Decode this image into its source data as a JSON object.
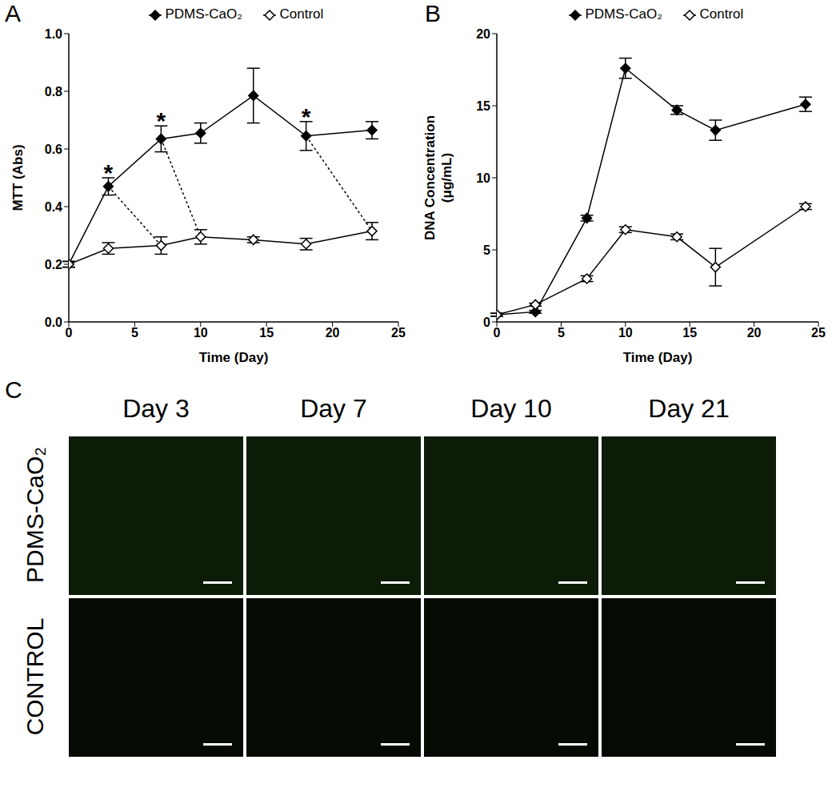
{
  "chart_data": [
    {
      "panel": "A",
      "type": "line",
      "xlabel": "Time (Day)",
      "ylabel": "MTT (Abs)",
      "xlim": [
        0,
        25
      ],
      "xticks": [
        0,
        5,
        10,
        15,
        20,
        25
      ],
      "ylim": [
        0,
        1.0
      ],
      "yticks": [
        {
          "value": 0,
          "label": "0.0"
        },
        {
          "value": 0.2,
          "label": "0.2"
        },
        {
          "value": 0.4,
          "label": "0.4"
        },
        {
          "value": 0.6,
          "label": "0.6"
        },
        {
          "value": 0.8,
          "label": "0.8"
        },
        {
          "value": 1.0,
          "label": "1.0"
        }
      ],
      "legend": "top",
      "series": [
        {
          "name": "PDMS-CaO₂",
          "color": "#000000",
          "marker": "diamond",
          "x": [
            0,
            3,
            7,
            10,
            14,
            18,
            23
          ],
          "values": [
            0.2,
            0.47,
            0.635,
            0.655,
            0.785,
            0.645,
            0.665
          ],
          "errors": [
            0.01,
            0.03,
            0.045,
            0.035,
            0.095,
            0.05,
            0.03
          ]
        },
        {
          "name": "Control",
          "color": "#000000",
          "marker": "diamond_open",
          "x": [
            0,
            3,
            7,
            10,
            14,
            18,
            23
          ],
          "values": [
            0.2,
            0.255,
            0.265,
            0.295,
            0.285,
            0.27,
            0.315
          ],
          "errors": [
            0.01,
            0.02,
            0.03,
            0.025,
            0.01,
            0.02,
            0.03
          ]
        }
      ],
      "annotations": [
        {
          "text": "*",
          "x": 3
        },
        {
          "text": "*",
          "x": 7
        },
        {
          "text": "*",
          "x": 18
        }
      ],
      "connectors": [
        {
          "from": 3,
          "to": 7,
          "line_style": "dotted"
        },
        {
          "from": 7,
          "to": 10,
          "line_style": "dotted"
        },
        {
          "from": 18,
          "to": 23,
          "line_style": "dotted"
        }
      ]
    },
    {
      "panel": "B",
      "type": "line",
      "xlabel": "Time (Day)",
      "ylabel": [
        "DNA Concentration",
        "(μg/mL)"
      ],
      "xlim": [
        0,
        25
      ],
      "xticks": [
        0,
        5,
        10,
        15,
        20,
        25
      ],
      "ylim": [
        0,
        20
      ],
      "yticks": [
        0,
        5,
        10,
        15,
        20
      ],
      "legend": "top",
      "series": [
        {
          "name": "PDMS-CaO₂",
          "color": "#000000",
          "marker": "diamond",
          "x": [
            0,
            3,
            7,
            10,
            14,
            17,
            24
          ],
          "values": [
            0.5,
            0.7,
            7.2,
            17.6,
            14.7,
            13.3,
            15.1
          ],
          "errors": [
            0.1,
            0.1,
            0.2,
            0.7,
            0.3,
            0.7,
            0.5
          ]
        },
        {
          "name": "Control",
          "color": "#000000",
          "marker": "diamond_open",
          "x": [
            0,
            3,
            7,
            10,
            14,
            17,
            24
          ],
          "values": [
            0.5,
            1.2,
            3.0,
            6.4,
            5.9,
            3.8,
            8.0
          ],
          "errors": [
            0.1,
            0.1,
            0.2,
            0.2,
            0.2,
            1.3,
            0.2
          ]
        }
      ]
    }
  ],
  "image_panel": {
    "panel": "C",
    "columns": [
      "Day 3",
      "Day 7",
      "Day 10",
      "Day 21"
    ],
    "rows": [
      "PDMS-CaO₂",
      "CONTROL"
    ]
  }
}
